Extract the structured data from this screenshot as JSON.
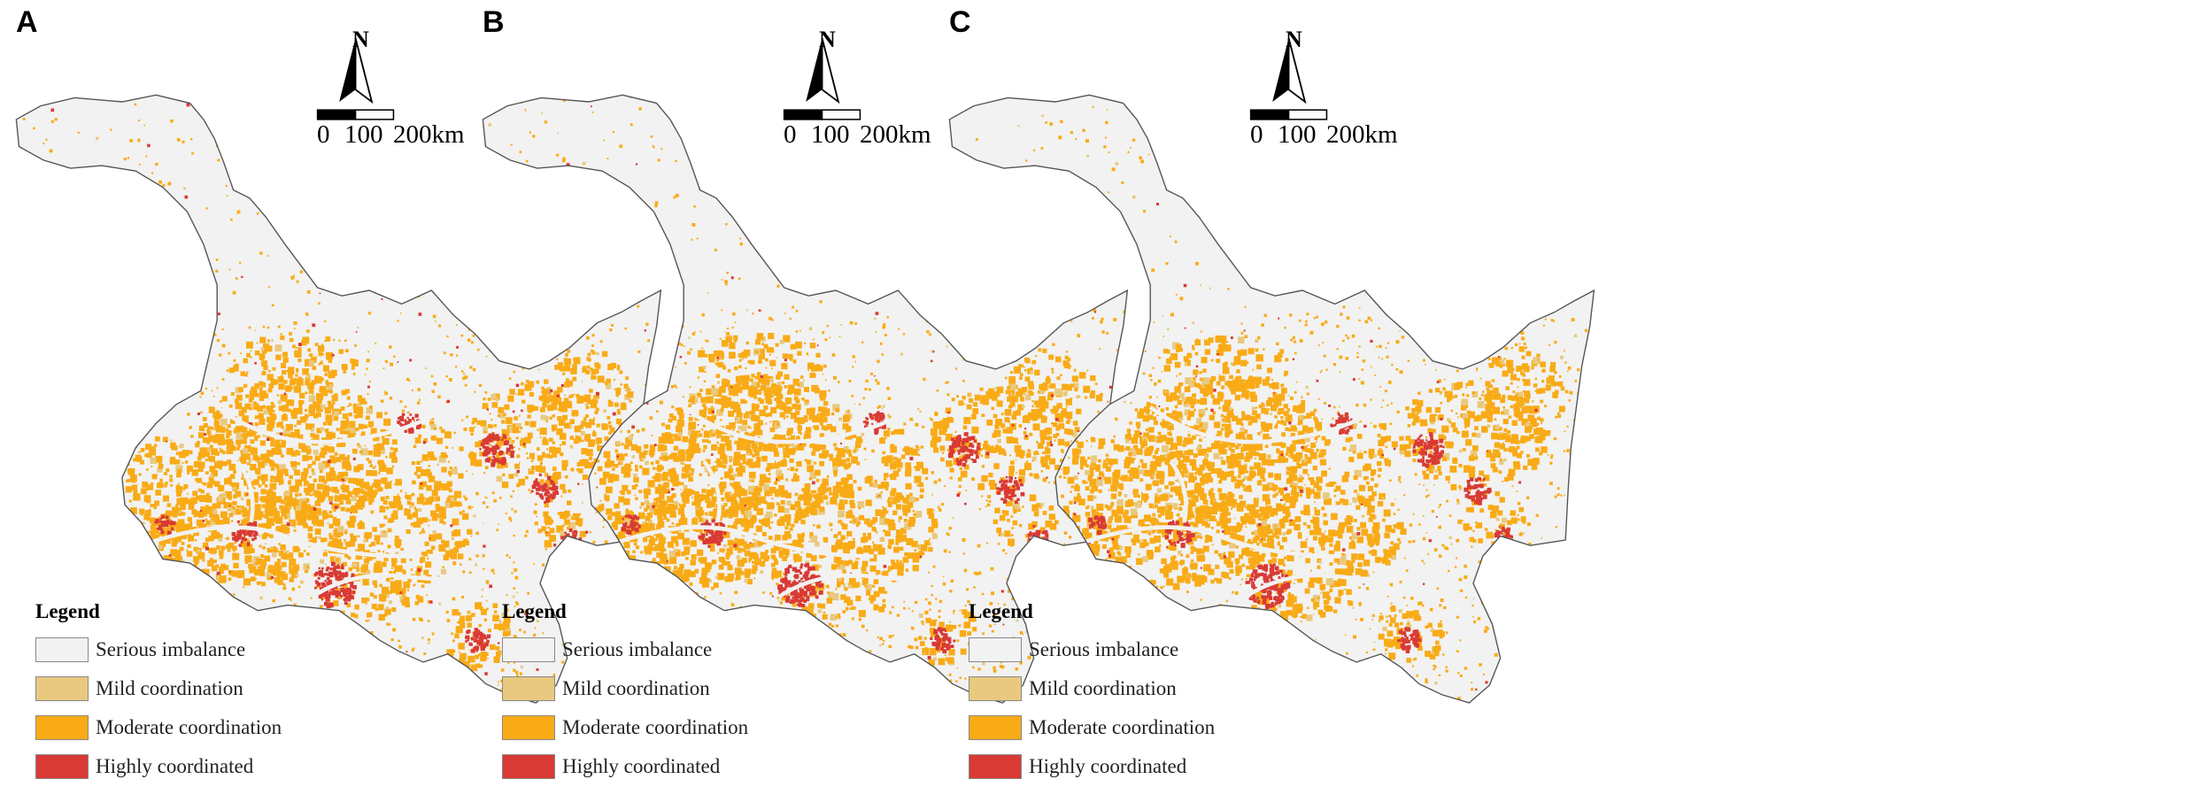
{
  "panels": [
    {
      "label": "A"
    },
    {
      "label": "B"
    },
    {
      "label": "C"
    }
  ],
  "north_arrow": {
    "letter": "N"
  },
  "scale_bar": {
    "labels": [
      "0",
      "100",
      "200km"
    ]
  },
  "legend": {
    "title": "Legend",
    "items": [
      {
        "label": "Serious imbalance",
        "color": "#f2f2f2"
      },
      {
        "label": "Mild coordination",
        "color": "#e8c97f"
      },
      {
        "label": "Moderate coordination",
        "color": "#f9ab17"
      },
      {
        "label": "Highly coordinated",
        "color": "#d93a35"
      }
    ]
  },
  "colors": {
    "background_land": "#f2f2f2",
    "boundary": "#555555"
  }
}
